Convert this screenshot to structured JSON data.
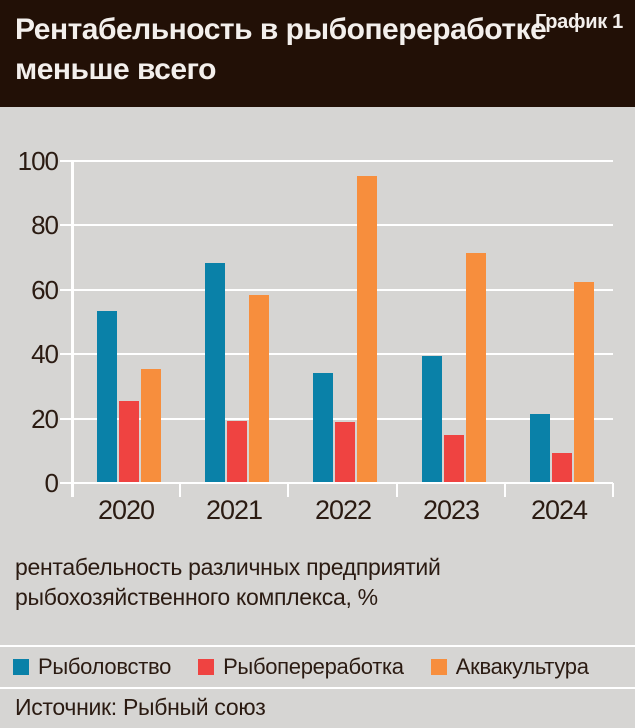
{
  "header": {
    "title_line1": "Рентабельность в рыбопереработке",
    "title_line2": "меньше всего",
    "chart_label": "График 1"
  },
  "caption": {
    "line1": "рентабельность различных предприятий",
    "line2": "рыбохозяйственного комплекса, %"
  },
  "source_line": "Источник: Рыбный союз",
  "colors": {
    "header_bg": "#221006",
    "page_bg": "#d6d5d3",
    "text_dark": "#2b1b12",
    "title_text": "#f3efec",
    "gridline": "#ffffff",
    "fishing_blue": "#0a81a8",
    "processing_red": "#ef4341",
    "aquaculture_orange": "#f78e3d"
  },
  "chart_data": {
    "type": "bar",
    "title": "Рентабельность в рыбопереработке меньше всего",
    "subtitle": "рентабельность различных предприятий рыбохозяйственного комплекса, %",
    "categories": [
      "2020",
      "2021",
      "2022",
      "2023",
      "2024"
    ],
    "series": [
      {
        "name": "Рыболовство",
        "color": "#0a81a8",
        "values": [
          53,
          68,
          34,
          39,
          21
        ]
      },
      {
        "name": "Рыбопереработка",
        "color": "#ef4341",
        "values": [
          25,
          19,
          18.5,
          14.5,
          9
        ]
      },
      {
        "name": "Аквакультура",
        "color": "#f78e3d",
        "values": [
          35,
          58,
          95,
          71,
          62
        ]
      }
    ],
    "xlabel": "",
    "ylabel": "%",
    "ylim": [
      0,
      100
    ],
    "yticks": [
      0,
      20,
      40,
      60,
      80,
      100
    ],
    "grid": true,
    "legend_position": "bottom",
    "source": "Рыбный союз"
  }
}
